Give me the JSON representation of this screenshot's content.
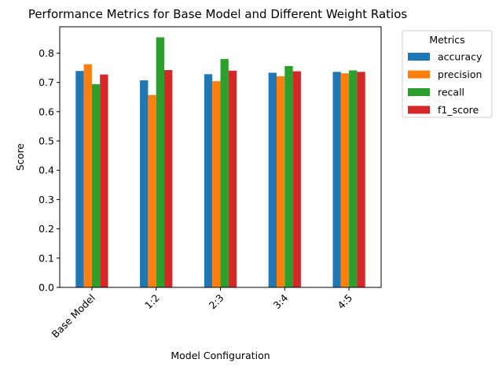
{
  "chart_data": {
    "type": "bar",
    "title": "Performance Metrics for Base Model and Different Weight Ratios",
    "xlabel": "Model Configuration",
    "ylabel": "Score",
    "categories": [
      "Base Model",
      "1:2",
      "2:3",
      "3:4",
      "4:5"
    ],
    "series": [
      {
        "name": "accuracy",
        "color": "#1f77b4",
        "values": [
          0.739,
          0.707,
          0.728,
          0.733,
          0.736
        ]
      },
      {
        "name": "precision",
        "color": "#ff7f0e",
        "values": [
          0.762,
          0.657,
          0.704,
          0.721,
          0.731
        ]
      },
      {
        "name": "recall",
        "color": "#2ca02c",
        "values": [
          0.694,
          0.854,
          0.78,
          0.756,
          0.741
        ]
      },
      {
        "name": "f1_score",
        "color": "#d62728",
        "values": [
          0.727,
          0.742,
          0.74,
          0.738,
          0.736
        ]
      }
    ],
    "ylim": [
      0,
      0.89
    ],
    "yticks": [
      "0.0",
      "0.1",
      "0.2",
      "0.3",
      "0.4",
      "0.5",
      "0.6",
      "0.7",
      "0.8"
    ],
    "grid": false,
    "legend": {
      "title": "Metrics",
      "placement": "outside-right"
    }
  }
}
